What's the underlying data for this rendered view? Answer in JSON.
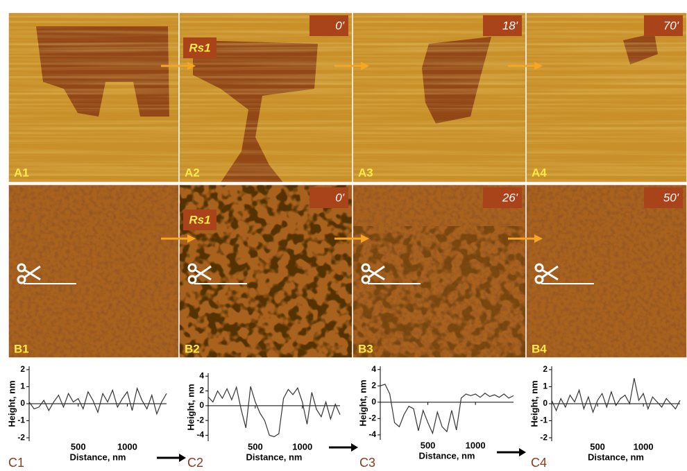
{
  "panels_a": {
    "labels": [
      "A1",
      "A2",
      "A3",
      "A4"
    ],
    "times": [
      "0'",
      "18'",
      "70'"
    ],
    "reagent": "Rs1"
  },
  "panels_b": {
    "labels": [
      "B1",
      "B2",
      "B3",
      "B4"
    ],
    "times": [
      "0'",
      "26'",
      "50'"
    ],
    "reagent": "Rs1"
  },
  "chart_data": [
    {
      "type": "line",
      "panel_label": "C1",
      "x_label": "Distance, nm",
      "y_label": "Height, nm",
      "x": [
        0,
        50,
        100,
        150,
        200,
        250,
        300,
        350,
        400,
        450,
        500,
        550,
        600,
        650,
        700,
        750,
        800,
        850,
        900,
        950,
        1000,
        1050,
        1100,
        1150,
        1200,
        1250,
        1300,
        1350,
        1400
      ],
      "series": [
        {
          "color": "#333333",
          "values": [
            0.1,
            -0.3,
            -0.2,
            0.2,
            -0.4,
            0.1,
            0.5,
            -0.2,
            0.6,
            0.1,
            0.3,
            -0.3,
            0.7,
            0.2,
            -0.5,
            0.6,
            0.1,
            0.8,
            -0.2,
            0.3,
            0.7,
            -0.4,
            0.9,
            0.2,
            -0.3,
            0.5,
            -0.6,
            0.1,
            0.6
          ]
        }
      ],
      "xlim": [
        0,
        1400
      ],
      "xticks": [
        500,
        1000
      ],
      "ylim": [
        -2.2,
        2.2
      ],
      "yticks": [
        2,
        1,
        0,
        -1,
        -2
      ]
    },
    {
      "type": "line",
      "panel_label": "C2",
      "x_label": "Distance, nm",
      "y_label": "Height, nm",
      "x": [
        0,
        50,
        100,
        150,
        200,
        250,
        300,
        350,
        400,
        450,
        500,
        550,
        600,
        650,
        700,
        750,
        800,
        850,
        900,
        950,
        1000,
        1050,
        1100,
        1150,
        1200,
        1250,
        1300,
        1350,
        1400
      ],
      "series": [
        {
          "color": "#333333",
          "values": [
            1.2,
            0.5,
            2.0,
            1.0,
            2.3,
            0.8,
            2.5,
            -0.5,
            -3.0,
            2.6,
            0.5,
            -1.0,
            -2.0,
            -4.0,
            -4.2,
            -3.8,
            1.0,
            2.2,
            1.5,
            2.4,
            0.5,
            -2.5,
            1.8,
            -0.5,
            -1.5,
            0.5,
            -1.8,
            0.2,
            -1.2
          ]
        }
      ],
      "xlim": [
        0,
        1400
      ],
      "xticks": [
        500,
        1000
      ],
      "ylim": [
        -4.8,
        4.4
      ],
      "yticks": [
        4,
        2,
        0,
        -2,
        -4
      ]
    },
    {
      "type": "line",
      "panel_label": "C3",
      "x_label": "Distance, nm",
      "y_label": "Height, nm",
      "x": [
        0,
        50,
        100,
        150,
        200,
        250,
        300,
        350,
        400,
        450,
        500,
        550,
        600,
        650,
        700,
        750,
        800,
        850,
        900,
        950,
        1000,
        1050,
        1100,
        1150,
        1200,
        1250,
        1300,
        1350,
        1400
      ],
      "series": [
        {
          "color": "#333333",
          "values": [
            2.0,
            2.2,
            1.0,
            -2.5,
            -3.0,
            -1.5,
            -0.5,
            -0.8,
            -3.5,
            -1.0,
            -2.5,
            -3.8,
            -1.2,
            -3.0,
            -3.6,
            -1.0,
            -3.4,
            0.5,
            1.0,
            0.8,
            1.0,
            0.6,
            1.1,
            0.7,
            0.9,
            0.6,
            1.0,
            0.5,
            0.8
          ]
        }
      ],
      "xlim": [
        0,
        1400
      ],
      "xticks": [
        500,
        1000
      ],
      "ylim": [
        -4.6,
        4.4
      ],
      "yticks": [
        4,
        2,
        0,
        -2,
        -4
      ]
    },
    {
      "type": "line",
      "panel_label": "C4",
      "x_label": "Distance, nm",
      "y_label": "Height, nm",
      "x": [
        0,
        50,
        100,
        150,
        200,
        250,
        300,
        350,
        400,
        450,
        500,
        550,
        600,
        650,
        700,
        750,
        800,
        850,
        900,
        950,
        1000,
        1050,
        1100,
        1150,
        1200,
        1250,
        1300,
        1350,
        1400
      ],
      "series": [
        {
          "color": "#333333",
          "values": [
            0.2,
            -0.4,
            0.3,
            -0.2,
            0.5,
            0.1,
            0.8,
            -0.3,
            0.4,
            -0.5,
            0.2,
            0.6,
            -0.2,
            0.7,
            -0.1,
            0.3,
            0.5,
            0.0,
            1.5,
            0.2,
            0.6,
            -0.3,
            0.4,
            0.1,
            -0.2,
            0.3,
            0.0,
            -0.3,
            0.2
          ]
        }
      ],
      "xlim": [
        0,
        1400
      ],
      "xticks": [
        500,
        1000
      ],
      "ylim": [
        -2.2,
        2.2
      ],
      "yticks": [
        2,
        1,
        0,
        -1,
        -2
      ]
    }
  ]
}
